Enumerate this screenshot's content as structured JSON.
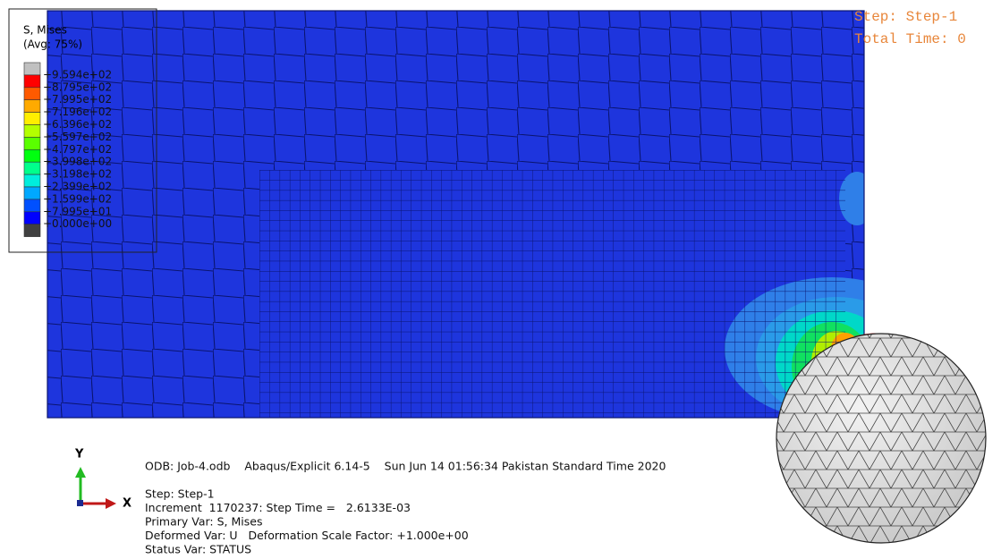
{
  "legend": {
    "title": "S, Mises",
    "subtitle": "(Avg: 75%)",
    "colors": [
      "#c0c0c0",
      "#ff0000",
      "#ff5a00",
      "#ffaa00",
      "#ffee00",
      "#b4ff00",
      "#5aff00",
      "#00ff10",
      "#00ff8c",
      "#00eedd",
      "#00a8ff",
      "#0050ff",
      "#0000ff",
      "#404040"
    ],
    "labels": [
      "+9.594e+02",
      "+8.795e+02",
      "+7.995e+02",
      "+7.196e+02",
      "+6.396e+02",
      "+5.597e+02",
      "+4.797e+02",
      "+3.998e+02",
      "+3.198e+02",
      "+2.399e+02",
      "+1.599e+02",
      "+7.995e+01",
      "+0.000e+00"
    ]
  },
  "step_info": [
    "Step: Step-1",
    "Total Time: 0"
  ],
  "triad": {
    "y": "Y",
    "x": "X"
  },
  "footer": {
    "odb_line": "ODB: Job-4.odb    Abaqus/Explicit 6.14-5    Sun Jun 14 01:56:34 Pakistan Standard Time 2020",
    "lines": [
      "Step: Step-1",
      "Increment  1170237: Step Time =   2.6133E-03",
      "Primary Var: S, Mises",
      "Deformed Var: U   Deformation Scale Factor: +1.000e+00",
      "Status Var: STATUS"
    ]
  }
}
